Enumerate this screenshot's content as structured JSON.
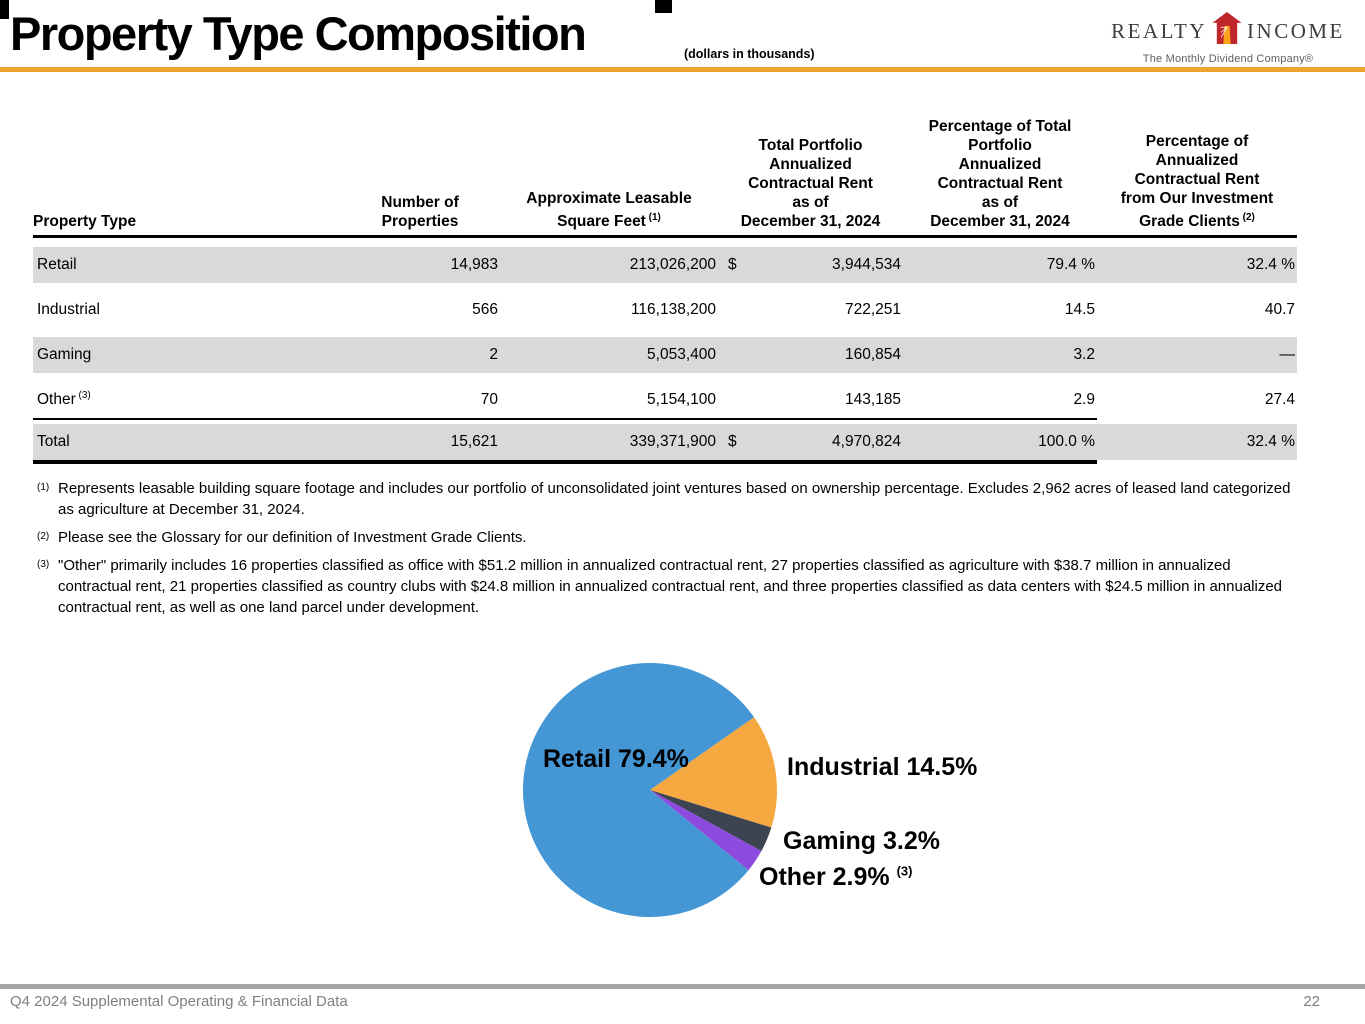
{
  "header": {
    "title": "Property Type Composition",
    "subtitle": "(dollars in thousands)",
    "logo": {
      "left": "REALTY",
      "right": "INCOME",
      "tagline": "The Monthly Dividend Company®"
    }
  },
  "colors": {
    "accent_rule": "#EFA32C",
    "row_shade": "#D9D9D9",
    "footer_bar": "#A6A6A6"
  },
  "table": {
    "columns": [
      {
        "lines": [
          "Property Type"
        ],
        "sup": ""
      },
      {
        "lines": [
          "Number of",
          "Properties"
        ],
        "sup": ""
      },
      {
        "lines": [
          "Approximate Leasable",
          "Square Feet"
        ],
        "sup": "(1)"
      },
      {
        "lines": [
          "Total Portfolio",
          "Annualized",
          "Contractual Rent",
          "as of",
          "December 31, 2024"
        ],
        "sup": ""
      },
      {
        "lines": [
          "Percentage of Total",
          "Portfolio",
          "Annualized",
          "Contractual Rent",
          "as of",
          "December 31, 2024"
        ],
        "sup": ""
      },
      {
        "lines": [
          "Percentage of",
          "Annualized",
          "Contractual Rent",
          "from Our Investment",
          "Grade Clients"
        ],
        "sup": "(2)"
      }
    ],
    "rows": [
      {
        "type": "Retail",
        "sup": "",
        "properties": "14,983",
        "sqft": "213,026,200",
        "dollar": "$",
        "rent": "3,944,534",
        "pct": "79.4 %",
        "ig": "32.4 %",
        "shaded": true
      },
      {
        "type": "Industrial",
        "sup": "",
        "properties": "566",
        "sqft": "116,138,200",
        "dollar": "",
        "rent": "722,251",
        "pct": "14.5",
        "ig": "40.7",
        "shaded": false
      },
      {
        "type": "Gaming",
        "sup": "",
        "properties": "2",
        "sqft": "5,053,400",
        "dollar": "",
        "rent": "160,854",
        "pct": "3.2",
        "ig": "—",
        "shaded": true
      },
      {
        "type": "Other",
        "sup": "(3)",
        "properties": "70",
        "sqft": "5,154,100",
        "dollar": "",
        "rent": "143,185",
        "pct": "2.9",
        "ig": "27.4",
        "shaded": false
      }
    ],
    "total": {
      "type": "Total",
      "sup": "",
      "properties": "15,621",
      "sqft": "339,371,900",
      "dollar": "$",
      "rent": "4,970,824",
      "pct": "100.0 %",
      "ig": "32.4 %",
      "shaded": true
    }
  },
  "footnotes": [
    {
      "marker": "(1)",
      "text": "Represents leasable building square footage and includes our portfolio of unconsolidated joint ventures based on ownership percentage. Excludes 2,962 acres of leased land categorized as agriculture at December 31, 2024."
    },
    {
      "marker": "(2)",
      "text": "Please see the Glossary for our definition of Investment Grade Clients."
    },
    {
      "marker": "(3)",
      "text": "\"Other\" primarily includes 16 properties classified as office with $51.2 million in annualized contractual rent, 27 properties classified as agriculture with $38.7 million in annualized contractual rent, 21 properties classified as country clubs with $24.8 million in annualized contractual rent, and three properties classified as data centers with $24.5 million in annualized contractual rent, as well as one land parcel under development."
    }
  ],
  "chart_data": {
    "type": "pie",
    "start_angle_deg": 55,
    "slices": [
      {
        "name": "Industrial",
        "value": 14.5,
        "color": "#F7A941"
      },
      {
        "name": "Gaming",
        "value": 3.2,
        "color": "#3B4450"
      },
      {
        "name": "Other",
        "value": 2.9,
        "color": "#8C4BDE"
      },
      {
        "name": "Retail",
        "value": 79.4,
        "color": "#4496D4"
      }
    ],
    "labels": {
      "retail": "Retail 79.4%",
      "industrial": "Industrial 14.5%",
      "gaming": "Gaming 3.2%",
      "other": "Other 2.9%",
      "other_sup": "(3)"
    },
    "legend_position": "none",
    "values_unit": "percent of total portfolio annualized contractual rent"
  },
  "footer": {
    "left": "Q4 2024 Supplemental Operating & Financial Data",
    "page": "22"
  }
}
